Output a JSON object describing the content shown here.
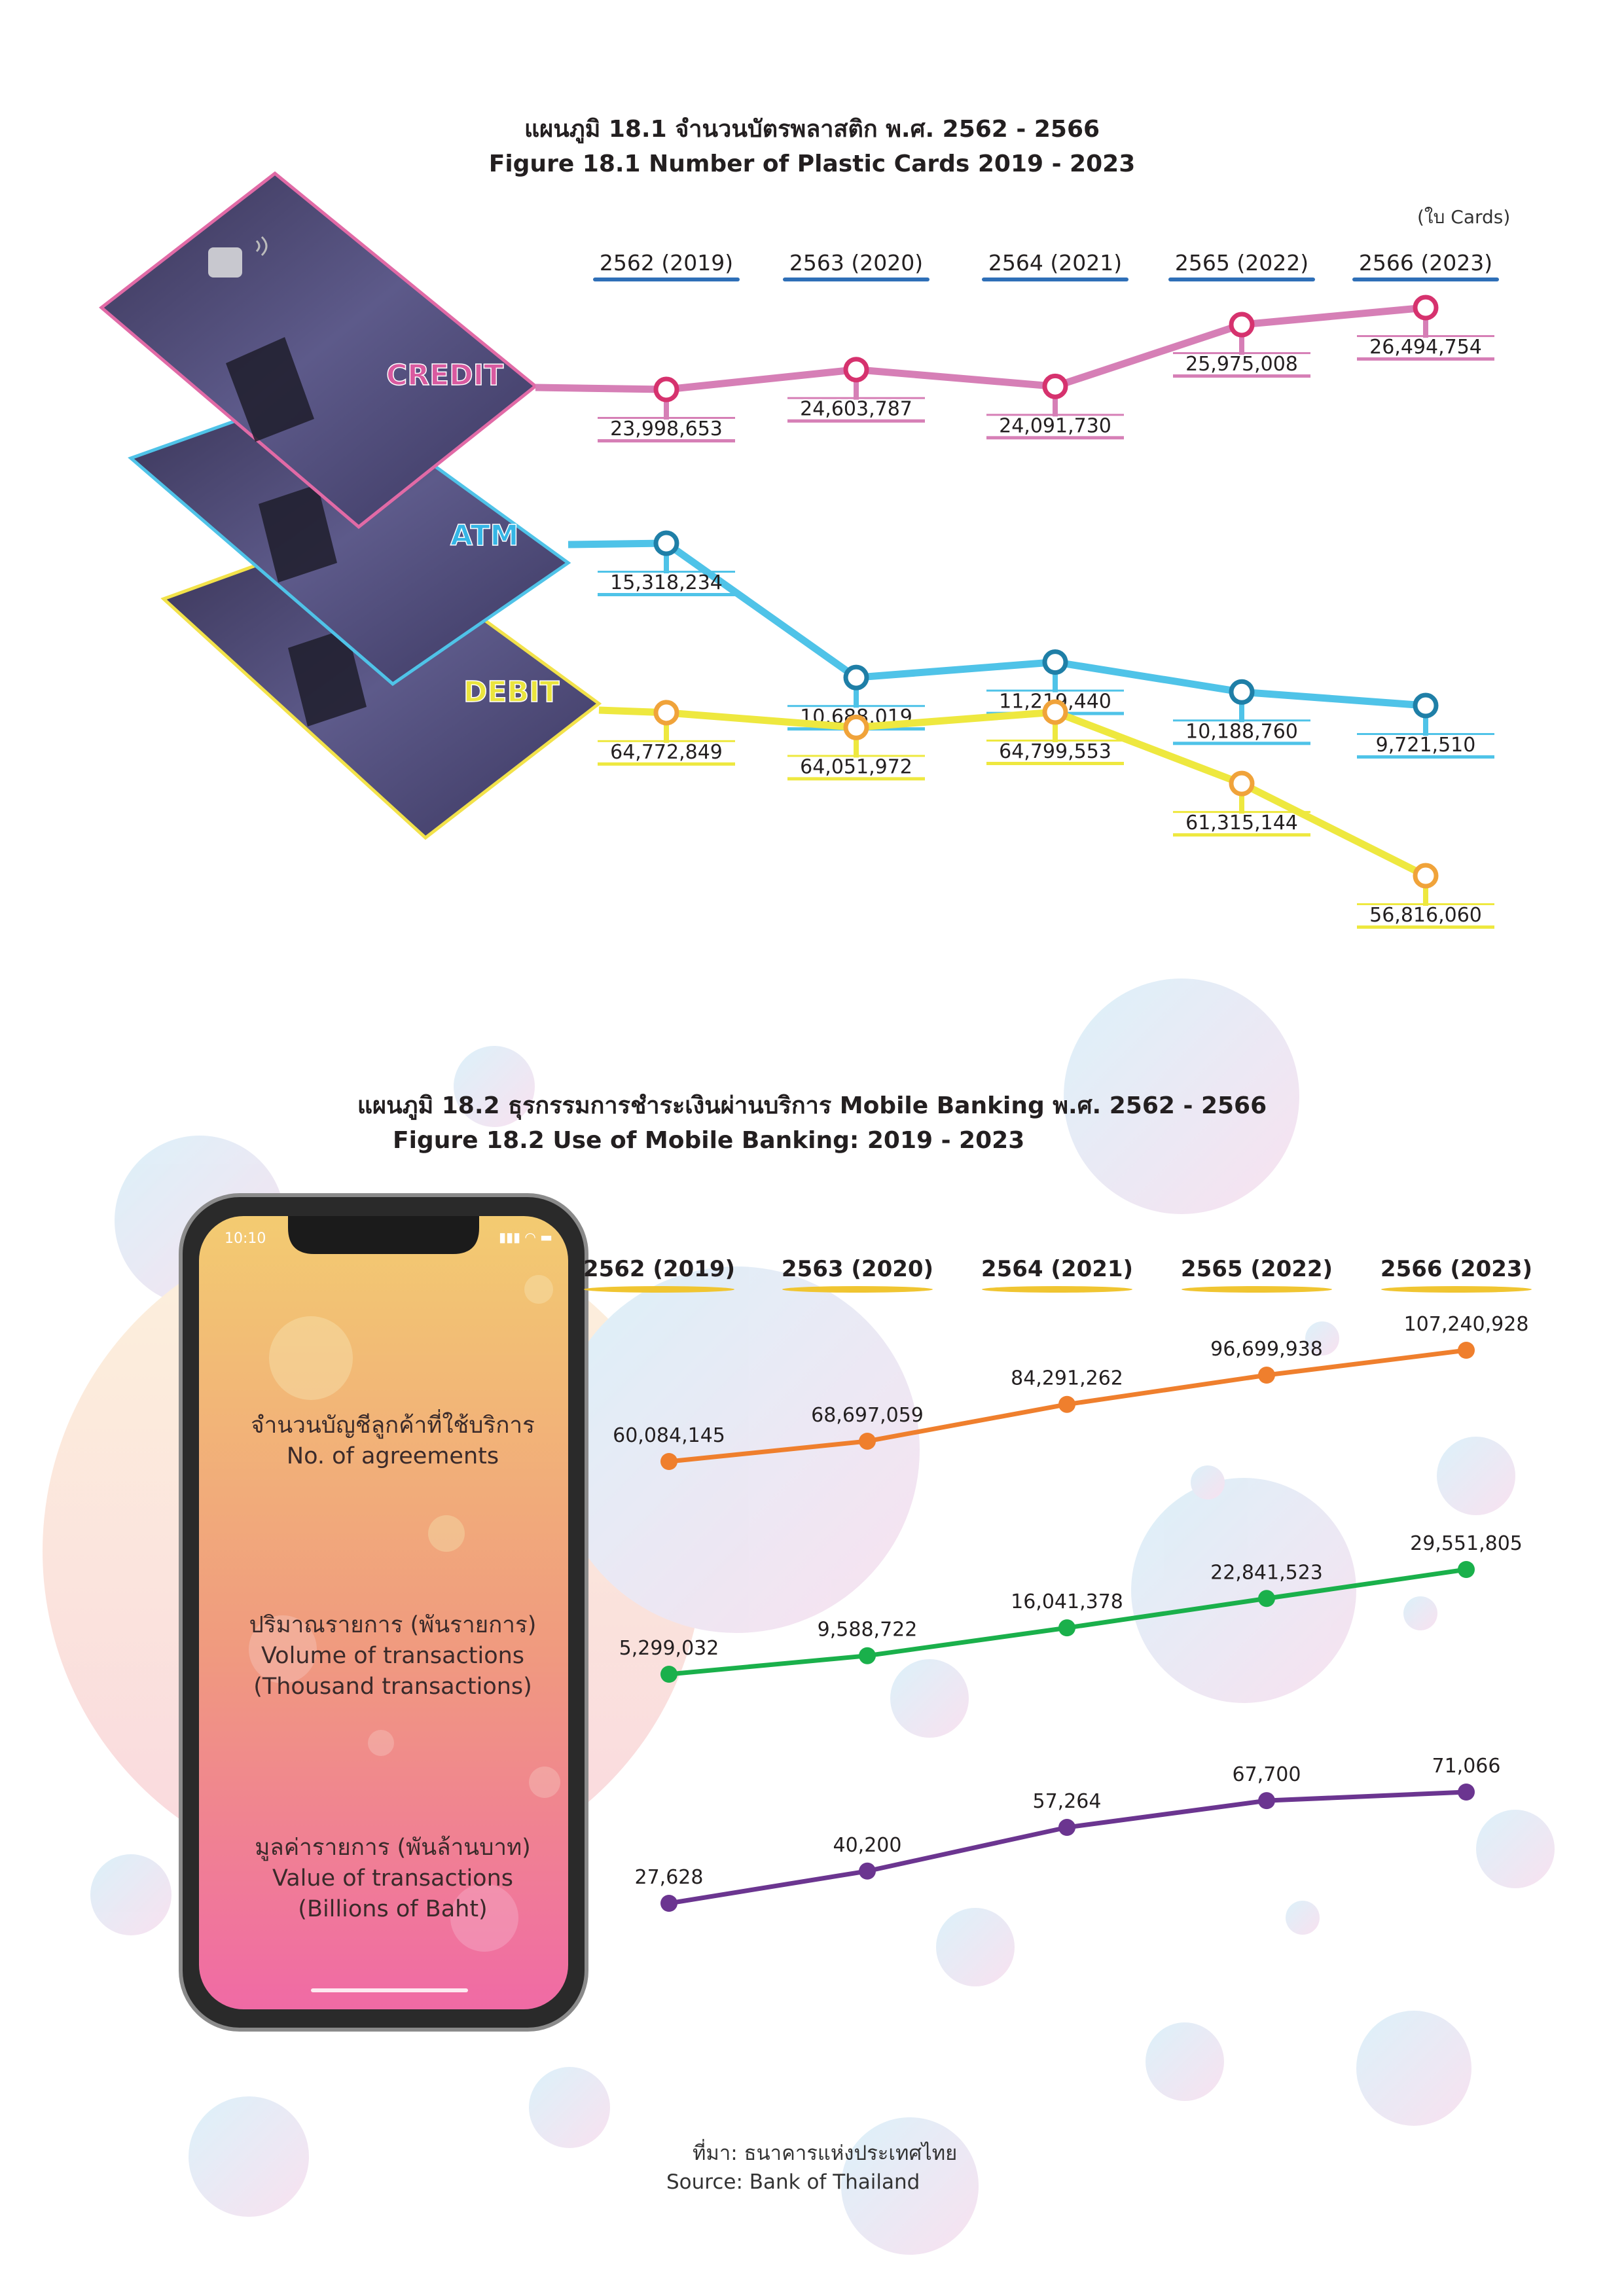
{
  "figure1": {
    "title_th": "แผนภูมิ 18.1 จำนวนบัตรพลาสติก พ.ศ. 2562 - 2566",
    "title_en": "Figure 18.1 Number of Plastic Cards 2019 - 2023",
    "unit": "(ใบ Cards)"
  },
  "figure2": {
    "title_th": "แผนภูมิ 18.2 ธุรกรรมการชำระเงินผ่านบริการ Mobile Banking พ.ศ. 2562 - 2566",
    "title_en": "Figure 18.2 Use of Mobile Banking: 2019 - 2023",
    "phone_time": "10:10",
    "labels": {
      "agreements_th": "จำนวนบัญชีลูกค้าที่ใช้บริการ",
      "agreements_en": "No. of agreements",
      "volume_th": "ปริมาณรายการ (พันรายการ)",
      "volume_en1": "Volume of transactions",
      "volume_en2": "(Thousand transactions)",
      "value_th": "มูลค่ารายการ (พันล้านบาท)",
      "value_en1": "Value of transactions",
      "value_en2": "(Billions of Baht)"
    }
  },
  "source": {
    "th": "ที่มา: ธนาคารแห่งประเทศไทย",
    "en": "Source: Bank of Thailand"
  },
  "chart_data": [
    {
      "type": "line",
      "title": "Figure 18.1 Number of Plastic Cards 2019 - 2023",
      "categories": [
        "2562 (2019)",
        "2563 (2020)",
        "2564 (2021)",
        "2565 (2022)",
        "2566 (2023)"
      ],
      "series": [
        {
          "name": "CREDIT",
          "color": "#d67fb6",
          "values": [
            23998653,
            24603787,
            24091730,
            25975008,
            26494754
          ],
          "labels": [
            "23,998,653",
            "24,603,787",
            "24,091,730",
            "25,975,008",
            "26,494,754"
          ]
        },
        {
          "name": "ATM",
          "color": "#4fc3e8",
          "values": [
            15318234,
            10688019,
            11219440,
            10188760,
            9721510
          ],
          "labels": [
            "15,318,234",
            "10,688,019",
            "11,219,440",
            "10,188,760",
            "9,721,510"
          ]
        },
        {
          "name": "DEBIT",
          "color": "#eee83f",
          "values": [
            64772849,
            64051972,
            64799553,
            61315144,
            56816060
          ],
          "labels": [
            "64,772,849",
            "64,051,972",
            "64,799,553",
            "61,315,144",
            "56,816,060"
          ]
        }
      ]
    },
    {
      "type": "line",
      "title": "Figure 18.2 Use of Mobile Banking: 2019 - 2023",
      "categories": [
        "2562 (2019)",
        "2563 (2020)",
        "2564 (2021)",
        "2565 (2022)",
        "2566 (2023)"
      ],
      "series": [
        {
          "name": "No. of agreements",
          "color": "#ef7f2d",
          "values": [
            60084145,
            68697059,
            84291262,
            96699938,
            107240928
          ],
          "labels": [
            "60,084,145",
            "68,697,059",
            "84,291,262",
            "96,699,938",
            "107,240,928"
          ]
        },
        {
          "name": "Volume of transactions (Thousand transactions)",
          "color": "#1ab04b",
          "values": [
            5299032,
            9588722,
            16041378,
            22841523,
            29551805
          ],
          "labels": [
            "5,299,032",
            "9,588,722",
            "16,041,378",
            "22,841,523",
            "29,551,805"
          ]
        },
        {
          "name": "Value of transactions (Billions of Baht)",
          "color": "#6b3590",
          "values": [
            27628,
            40200,
            57264,
            67700,
            71066
          ],
          "labels": [
            "27,628",
            "40,200",
            "57,264",
            "67,700",
            "71,066"
          ]
        }
      ]
    }
  ]
}
